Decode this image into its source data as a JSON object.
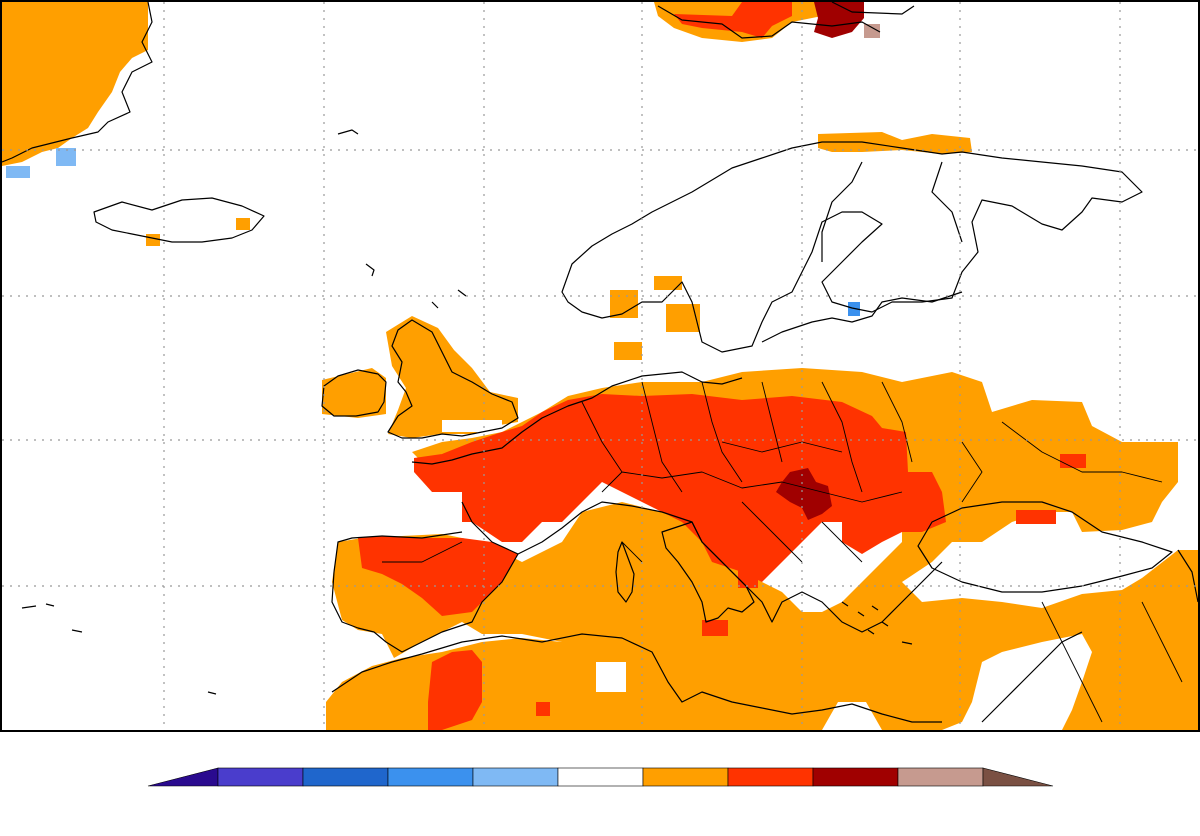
{
  "map": {
    "type": "anomaly-map",
    "region": "Europe",
    "projection": "cylindrical",
    "grid": "dotted",
    "meridian_lines": 7,
    "parallel_lines": 4,
    "land_outline_color": "#000000",
    "ocean_color": "#ffffff"
  },
  "colorbar": {
    "orientation": "horizontal",
    "extend": "both",
    "min_extension_color": "#2a0a8f",
    "max_extension_color": "#7a5043",
    "bins": [
      {
        "color": "#4a3dcc"
      },
      {
        "color": "#1f66cc"
      },
      {
        "color": "#3b91ee"
      },
      {
        "color": "#7fb9f4"
      },
      {
        "color": "#ffffff"
      },
      {
        "color": "#ff9f00"
      },
      {
        "color": "#ff3300"
      },
      {
        "color": "#a00000"
      },
      {
        "color": "#c69a8f"
      }
    ],
    "tick_labels": []
  },
  "patches": [
    {
      "category": 1,
      "color": "#ff9f00",
      "name": "greenland-warm"
    },
    {
      "category": 1,
      "color": "#ff9f00",
      "name": "europe-warm"
    },
    {
      "category": 2,
      "color": "#ff3300",
      "name": "central-europe-hot"
    },
    {
      "category": 2,
      "color": "#ff3300",
      "name": "iberia-hot"
    },
    {
      "category": 2,
      "color": "#ff3300",
      "name": "north-africa-hot"
    },
    {
      "category": 3,
      "color": "#a00000",
      "name": "pannonia-very-hot"
    },
    {
      "category": 3,
      "color": "#a00000",
      "name": "svalbard-very-hot"
    },
    {
      "category": -1,
      "color": "#7fb9f4",
      "name": "cool-spots"
    }
  ]
}
